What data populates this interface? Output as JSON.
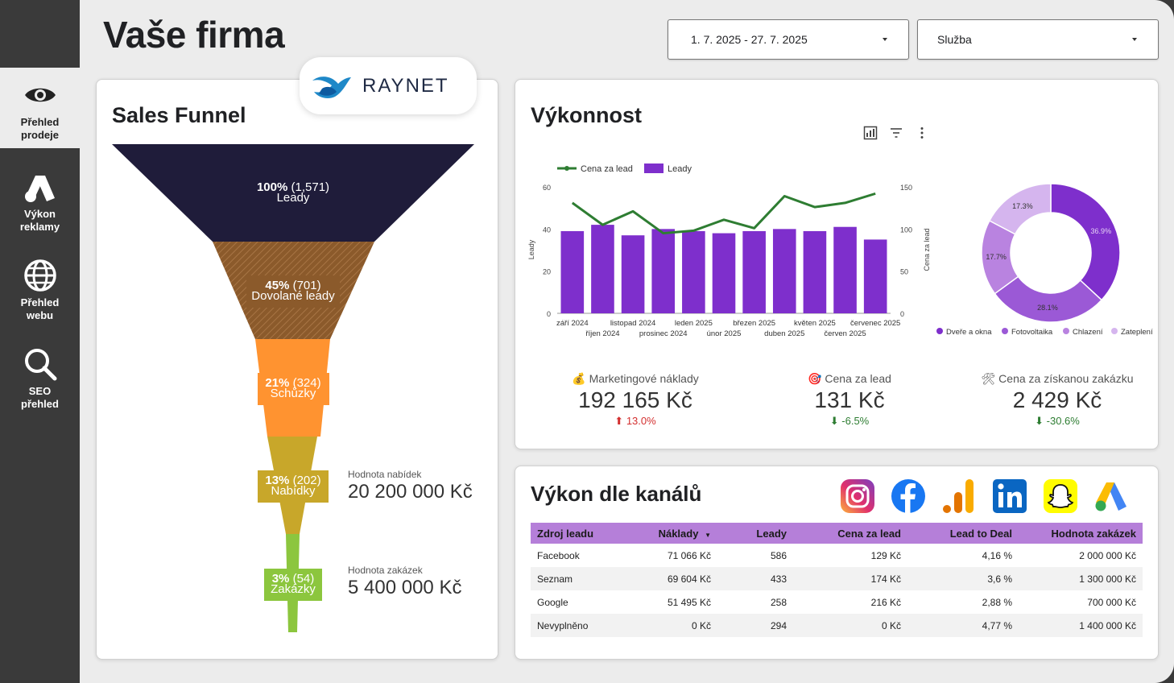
{
  "nav": [
    {
      "label": "Přehled\nprodeje",
      "icon": "eye-icon"
    },
    {
      "label": "Výkon\nreklamy",
      "icon": "google-ads-icon"
    },
    {
      "label": "Přehled\nwebu",
      "icon": "globe-icon"
    },
    {
      "label": "SEO\npřehled",
      "icon": "search-icon"
    }
  ],
  "header": {
    "title": "Vaše firma",
    "date_range": "1. 7. 2025 - 27. 7. 2025",
    "service_select": "Služba"
  },
  "logo": {
    "text": "RAYNET"
  },
  "funnel": {
    "title": "Sales Funnel",
    "stages": [
      {
        "pct": "100%",
        "count": "(1,571)",
        "name": "Leady",
        "color": "#1f1c3a"
      },
      {
        "pct": "45%",
        "count": "(701)",
        "name": "Dovolané leady",
        "color": "#8b5a2b"
      },
      {
        "pct": "21%",
        "count": "(324)",
        "name": "Schůzky",
        "color": "#ff9330"
      },
      {
        "pct": "13%",
        "count": "(202)",
        "name": "Nabídky",
        "color": "#c8a72a"
      },
      {
        "pct": "3%",
        "count": "(54)",
        "name": "Zakázky",
        "color": "#8cc63e"
      }
    ],
    "offers_caption": "Hodnota nabídek",
    "offers_value": "20 200 000 Kč",
    "deals_caption": "Hodnota zakázek",
    "deals_value": "5 400 000 Kč"
  },
  "performance": {
    "title": "Výkonnost",
    "kpis": [
      {
        "icon": "money-bag-icon",
        "caption": "Marketingové náklady",
        "value": "192 165 Kč",
        "delta": "13.0%",
        "direction": "up",
        "color": "#d32f2f"
      },
      {
        "icon": "target-icon",
        "caption": "Cena za lead",
        "value": "131 Kč",
        "delta": "-6.5%",
        "direction": "down",
        "color": "#2e7d32"
      },
      {
        "icon": "tools-icon",
        "caption": "Cena za získanou zakázku",
        "value": "2 429 Kč",
        "delta": "-30.6%",
        "direction": "down",
        "color": "#2e7d32"
      }
    ]
  },
  "chart_data": [
    {
      "type": "bar",
      "legend": [
        "Cena za lead",
        "Leady"
      ],
      "categories": [
        "září 2024",
        "říjen 2024",
        "listopad 2024",
        "prosinec 2024",
        "leden 2025",
        "únor 2025",
        "březen 2025",
        "duben 2025",
        "květen 2025",
        "červen 2025",
        "červenec 2025"
      ],
      "series": [
        {
          "name": "Leady",
          "type": "bar",
          "axis": "left",
          "color": "#7e2fcc",
          "values": [
            39,
            42,
            37,
            40,
            39,
            38,
            39,
            40,
            39,
            41,
            35
          ]
        },
        {
          "name": "Cena za lead",
          "type": "line",
          "axis": "right",
          "color": "#2e7d32",
          "values": [
            131,
            105,
            121,
            95,
            98,
            111,
            101,
            139,
            126,
            131,
            142
          ]
        }
      ],
      "ylabel": "Leady",
      "y2label": "Cena za lead",
      "ylim": [
        0,
        60
      ],
      "y2lim": [
        0,
        150
      ],
      "yticks": [
        0,
        20,
        40,
        60
      ],
      "y2ticks": [
        0,
        50,
        100,
        150
      ],
      "xtick_labels": [
        "září 2024",
        "říjen 2024",
        "listopad 2024",
        "prosinec 2024",
        "leden 2025",
        "únor 2025",
        "březen 2025",
        "duben 2025",
        "květen 2025",
        "červen 2025",
        "červenec 2025"
      ]
    },
    {
      "type": "pie",
      "donut": true,
      "labels": [
        "Dveře a okna",
        "Fotovoltaika",
        "Chlazení",
        "Zateplení"
      ],
      "values": [
        36.9,
        28.1,
        17.7,
        17.3
      ],
      "value_labels": [
        "36.9%",
        "28.1%",
        "17.7%",
        "17.3%"
      ],
      "colors": [
        "#7e2fcc",
        "#9b59d6",
        "#b983e0",
        "#d5b5ee"
      ]
    }
  ],
  "channels": {
    "title": "Výkon dle kanálů",
    "icons": [
      "instagram-icon",
      "facebook-icon",
      "google-analytics-icon",
      "linkedin-icon",
      "snapchat-icon",
      "google-ads-icon"
    ],
    "columns": [
      "Zdroj leadu",
      "Náklady",
      "Leady",
      "Cena za lead",
      "Lead to Deal",
      "Hodnota zakázek"
    ],
    "rows": [
      [
        "Facebook",
        "71 066 Kč",
        "586",
        "129 Kč",
        "4,16 %",
        "2 000 000 Kč"
      ],
      [
        "Seznam",
        "69 604 Kč",
        "433",
        "174 Kč",
        "3,6 %",
        "1 300 000 Kč"
      ],
      [
        "Google",
        "51 495 Kč",
        "258",
        "216 Kč",
        "2,88 %",
        "700 000 Kč"
      ],
      [
        "Nevyplněno",
        "0 Kč",
        "294",
        "0 Kč",
        "4,77 %",
        "1 400 000 Kč"
      ]
    ]
  }
}
